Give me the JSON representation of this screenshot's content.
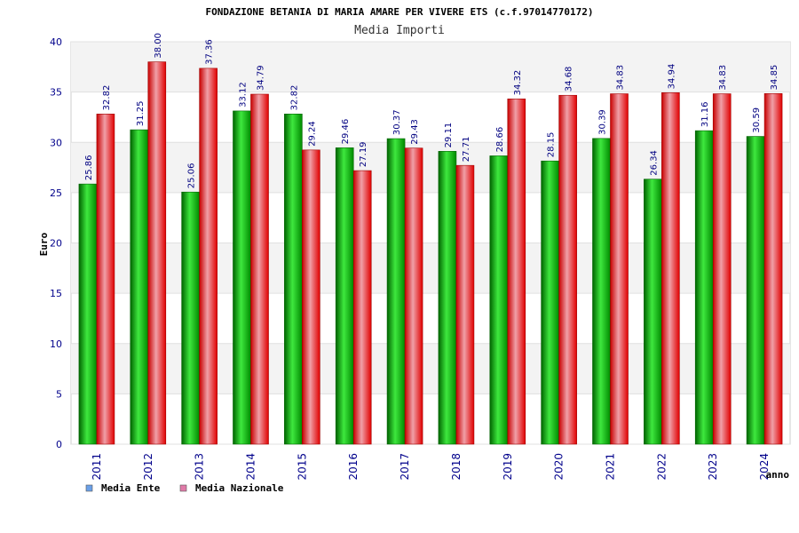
{
  "chart_data": {
    "type": "bar",
    "title": "FONDAZIONE BETANIA DI MARIA AMARE PER VIVERE ETS (c.f.97014770172)",
    "subtitle": "Media Importi",
    "xlabel": "anno",
    "ylabel": "Euro",
    "ylim": [
      0,
      40
    ],
    "yticks": [
      0,
      5,
      10,
      15,
      20,
      25,
      30,
      35,
      40
    ],
    "grid": true,
    "legend_position": "bottom-left",
    "categories": [
      "2011",
      "2012",
      "2013",
      "2014",
      "2015",
      "2016",
      "2017",
      "2018",
      "2019",
      "2020",
      "2021",
      "2022",
      "2023",
      "2024"
    ],
    "series": [
      {
        "name": "Media Ente",
        "color": "#00c000",
        "legend_color": "#6aa0e8",
        "values": [
          25.86,
          31.25,
          25.06,
          33.12,
          32.82,
          29.46,
          30.37,
          29.11,
          28.66,
          28.15,
          30.39,
          26.34,
          31.16,
          30.59
        ],
        "labels": [
          "25.86",
          "31.25",
          "25.06",
          "33.12",
          "32.82",
          "29.46",
          "30.37",
          "29.11",
          "28.66",
          "28.15",
          "30.39",
          "26.34",
          "31.16",
          "30.59"
        ]
      },
      {
        "name": "Media Nazionale",
        "color": "#f00000",
        "legend_color": "#e07aa8",
        "values": [
          32.82,
          38.0,
          37.36,
          34.79,
          29.24,
          27.19,
          29.43,
          27.71,
          34.32,
          34.68,
          34.83,
          34.94,
          34.83,
          34.85
        ],
        "labels": [
          "32.82",
          "38.00",
          "37.36",
          "34.79",
          "29.24",
          "27.19",
          "29.43",
          "27.71",
          "34.32",
          "34.68",
          "34.83",
          "34.94",
          "34.83",
          "34.85"
        ]
      }
    ]
  }
}
